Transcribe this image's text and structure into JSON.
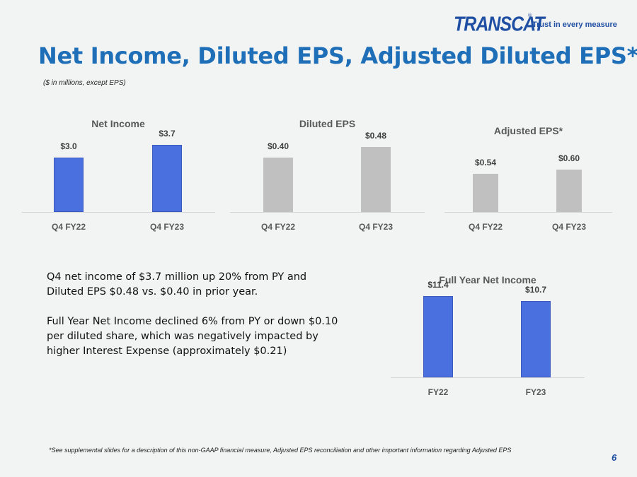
{
  "header": {
    "logo_text": "TRANSCAT",
    "logo_reg": "®",
    "tagline": "Trust in every measure",
    "title": "Net Income, Diluted EPS, Adjusted Diluted EPS*",
    "subtitle": "($ in millions, except EPS)"
  },
  "colors": {
    "blue_bar": "#4a6fdf",
    "gray_bar": "#c0c0c0",
    "title": "#1f6fb8",
    "logo": "#1f4fa3"
  },
  "chart_data": [
    {
      "type": "bar",
      "title": "Net Income",
      "categories": [
        "Q4 FY22",
        "Q4 FY23"
      ],
      "values": [
        3.0,
        3.7
      ],
      "labels": [
        "$3.0",
        "$3.7"
      ],
      "ylim": [
        0,
        4.5
      ],
      "color": "blue"
    },
    {
      "type": "bar",
      "title": "Diluted EPS",
      "categories": [
        "Q4 FY22",
        "Q4 FY23"
      ],
      "values": [
        0.4,
        0.48
      ],
      "labels": [
        "$0.40",
        "$0.48"
      ],
      "ylim": [
        0,
        0.6
      ],
      "color": "gray"
    },
    {
      "type": "bar",
      "title": "Adjusted EPS*",
      "categories": [
        "Q4 FY22",
        "Q4 FY23"
      ],
      "values": [
        0.54,
        0.6
      ],
      "labels": [
        "$0.54",
        "$0.60"
      ],
      "ylim": [
        0,
        1.0
      ],
      "color": "gray"
    },
    {
      "type": "bar",
      "title": "Full Year Net Income",
      "categories": [
        "FY22",
        "FY23"
      ],
      "values": [
        11.4,
        10.7
      ],
      "labels": [
        "$11.4",
        "$10.7"
      ],
      "ylim": [
        0,
        12.5
      ],
      "color": "blue"
    }
  ],
  "body": {
    "para1": "Q4 net income of $3.7 million up 20% from PY and Diluted EPS $0.48 vs. $0.40 in prior year.",
    "para2": " Full Year Net Income declined 6% from PY or down $0.10 per diluted share, which was negatively impacted by higher Interest Expense (approximately $0.21)"
  },
  "footer": {
    "note": "*See supplemental slides for a description of this non-GAAP financial measure, Adjusted EPS reconciliation and other important information regarding Adjusted EPS",
    "page": "6"
  }
}
